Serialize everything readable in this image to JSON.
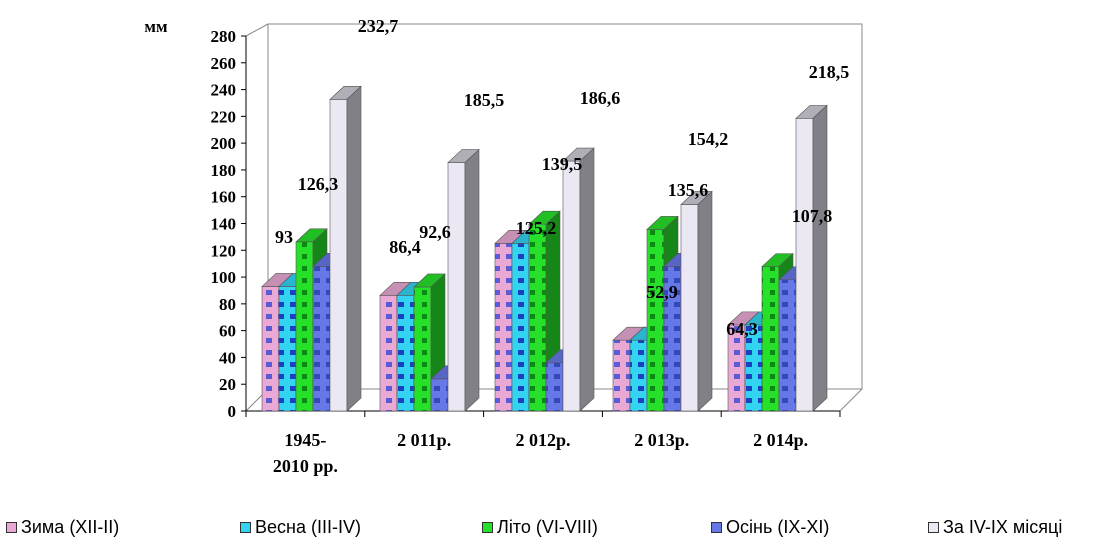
{
  "chart_data": {
    "type": "bar",
    "ylabel": "мм",
    "ylim": [
      0,
      280
    ],
    "ytick_step": 20,
    "categories": [
      [
        "1945-",
        "2010 рр."
      ],
      [
        "2 011р."
      ],
      [
        "2 012р."
      ],
      [
        "2 013р."
      ],
      [
        "2 014р."
      ]
    ],
    "series": [
      {
        "name": "Зима (XII-II)",
        "values": [
          93,
          86.4,
          125.2,
          52.9,
          64.3
        ],
        "color": "#e9a9d4",
        "accent": "#5b5bd6"
      },
      {
        "name": "Весна (III-IV)",
        "values": [
          93,
          86.4,
          125.2,
          52.9,
          64.3
        ],
        "color": "#33d4f2",
        "accent": "#1a3fbf"
      },
      {
        "name": "Літо (VI-VIII)",
        "values": [
          126.3,
          92.6,
          139.5,
          135.6,
          107.8
        ],
        "color": "#27e02a",
        "accent": "#0a8a12"
      },
      {
        "name": "Осінь (IX-XI)",
        "values": [
          108,
          24,
          36,
          108,
          98
        ],
        "color": "#6677e8",
        "accent": "#3548b8"
      },
      {
        "name": "За IV-IX місяці",
        "values": [
          232.7,
          185.5,
          186.6,
          154.2,
          218.5
        ],
        "color": "#ebe8f4",
        "accent": "#9a9a9a"
      }
    ],
    "data_labels": [
      "93",
      "126,3",
      "232,7",
      "86,4",
      "92,6",
      "185,5",
      "125,2",
      "139,5",
      "186,6",
      "52,9",
      "135,6",
      "154,2",
      "64,3",
      "107,8",
      "218,5"
    ],
    "grid": false,
    "legend_position": "bottom"
  }
}
